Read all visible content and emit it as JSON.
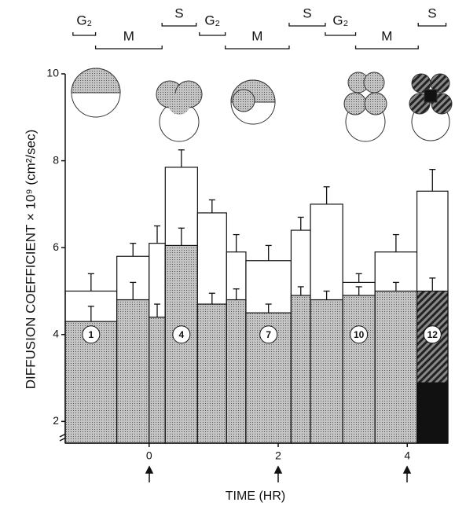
{
  "chart_data": {
    "type": "bar",
    "y_label": "DIFFUSION COEFFICIENT × 10⁹ (cm²/sec)",
    "x_label": "TIME (HR)",
    "xlim": [
      -1.3,
      4.63
    ],
    "ylim": [
      1.5,
      10
    ],
    "xticks": [
      0,
      2,
      4
    ],
    "yticks": [
      2,
      4,
      6,
      8,
      10
    ],
    "x_edges": [
      -1.3,
      -0.5,
      0,
      0.25,
      0.75,
      1.2,
      1.5,
      2.2,
      2.5,
      3,
      3.5,
      4.15,
      4.63
    ],
    "labels": [
      "1",
      null,
      null,
      "4",
      null,
      null,
      "7",
      null,
      null,
      "10",
      null,
      "12"
    ],
    "series": [
      {
        "color": "#ffffff",
        "values": [
          5.0,
          5.8,
          6.1,
          7.85,
          6.8,
          5.9,
          5.7,
          6.4,
          7.0,
          5.2,
          5.9,
          7.3
        ],
        "errors": [
          0.4,
          0.3,
          0.4,
          0.4,
          0.3,
          0.4,
          0.35,
          0.3,
          0.4,
          0.2,
          0.4,
          0.5
        ]
      },
      {
        "color": "#c4c4c4",
        "values": [
          4.3,
          4.8,
          4.4,
          6.05,
          4.7,
          4.8,
          4.5,
          4.9,
          4.8,
          4.9,
          5.0,
          5.0
        ],
        "errors": [
          0.35,
          0.4,
          0.3,
          0.4,
          0.25,
          0.25,
          0.2,
          0.2,
          0.2,
          0.2,
          0.2,
          0.3
        ]
      },
      {
        "color": "#111111",
        "values": [
          null,
          null,
          null,
          null,
          null,
          null,
          null,
          null,
          null,
          null,
          null,
          2.9
        ]
      }
    ],
    "phases": [
      {
        "label": "G₂",
        "start": -1.18,
        "end": -0.83
      },
      {
        "label": "M",
        "start": -0.83,
        "end": 0.2
      },
      {
        "label": "S",
        "start": 0.2,
        "end": 0.73
      },
      {
        "label": "G₂",
        "start": 0.78,
        "end": 1.18
      },
      {
        "label": "M",
        "start": 1.18,
        "end": 2.17
      },
      {
        "label": "S",
        "start": 2.17,
        "end": 2.73
      },
      {
        "label": "G₂",
        "start": 2.73,
        "end": 3.2
      },
      {
        "label": "M",
        "start": 3.2,
        "end": 4.17
      },
      {
        "label": "S",
        "start": 4.17,
        "end": 4.6
      }
    ]
  }
}
